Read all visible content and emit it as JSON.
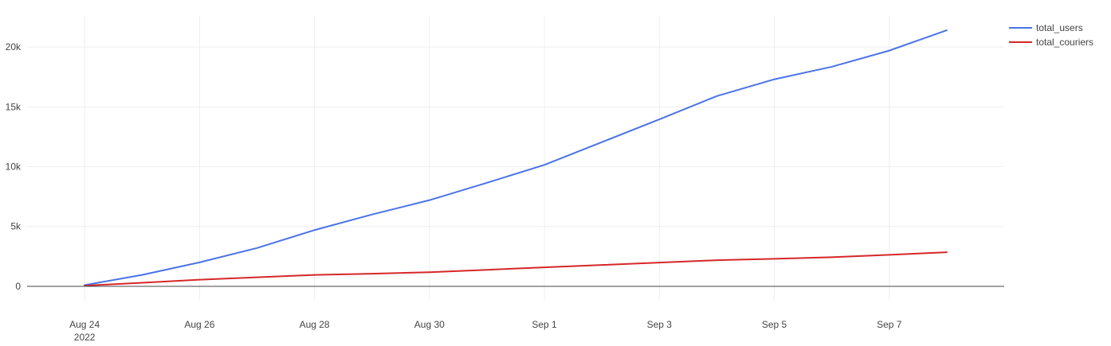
{
  "chart_data": {
    "type": "line",
    "title": "",
    "xlabel": "",
    "ylabel": "",
    "x": [
      "2022-08-24",
      "2022-08-25",
      "2022-08-26",
      "2022-08-27",
      "2022-08-28",
      "2022-08-29",
      "2022-08-30",
      "2022-08-31",
      "2022-09-01",
      "2022-09-02",
      "2022-09-03",
      "2022-09-04",
      "2022-09-05",
      "2022-09-06",
      "2022-09-07",
      "2022-09-08"
    ],
    "x_ticks": [
      {
        "date": "2022-08-24",
        "label": "Aug 24",
        "sublabel": "2022"
      },
      {
        "date": "2022-08-26",
        "label": "Aug 26"
      },
      {
        "date": "2022-08-28",
        "label": "Aug 28"
      },
      {
        "date": "2022-08-30",
        "label": "Aug 30"
      },
      {
        "date": "2022-09-01",
        "label": "Sep 1"
      },
      {
        "date": "2022-09-03",
        "label": "Sep 3"
      },
      {
        "date": "2022-09-05",
        "label": "Sep 5"
      },
      {
        "date": "2022-09-07",
        "label": "Sep 7"
      }
    ],
    "xlim": [
      "2022-08-23",
      "2022-09-09"
    ],
    "y_ticks": [
      {
        "value": 0,
        "label": "0"
      },
      {
        "value": 5000,
        "label": "5k"
      },
      {
        "value": 10000,
        "label": "10k"
      },
      {
        "value": 15000,
        "label": "15k"
      },
      {
        "value": 20000,
        "label": "20k"
      }
    ],
    "ylim": [
      -1200,
      22600
    ],
    "grid": true,
    "legend_position": "top-right",
    "series": [
      {
        "name": "total_users",
        "color": "#4a73e8",
        "values": [
          100,
          950,
          2000,
          3200,
          4700,
          6000,
          7200,
          8650,
          10150,
          12050,
          13950,
          15900,
          17300,
          18350,
          19700,
          21400
        ]
      },
      {
        "name": "total_couriers",
        "color": "#d62728",
        "values": [
          50,
          300,
          550,
          750,
          950,
          1050,
          1180,
          1380,
          1580,
          1780,
          1980,
          2180,
          2300,
          2430,
          2630,
          2850
        ]
      }
    ]
  }
}
